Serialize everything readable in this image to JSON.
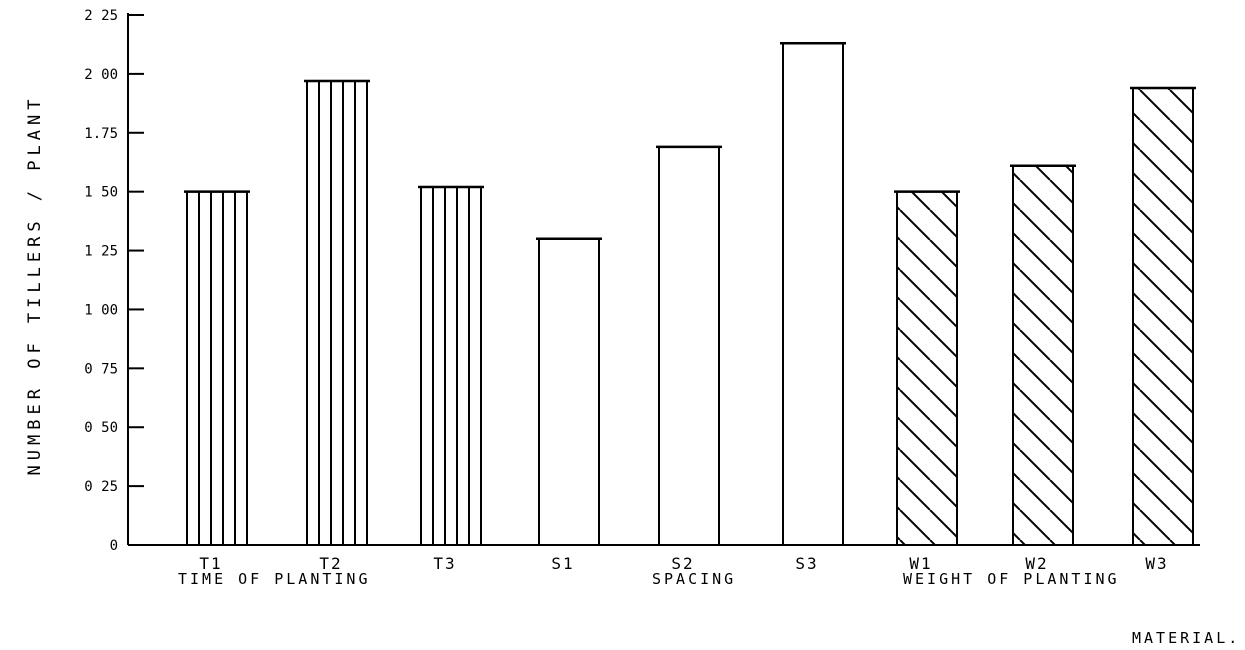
{
  "chart_data": {
    "type": "bar",
    "title": "",
    "ylabel": "NUMBER  OF  TILLERS / PLANT",
    "xlabel": "",
    "ylim": [
      0,
      2.25
    ],
    "yticks": [
      {
        "value": 0,
        "label": "0"
      },
      {
        "value": 0.25,
        "label": "0 25"
      },
      {
        "value": 0.5,
        "label": "0 50"
      },
      {
        "value": 0.75,
        "label": "0 75"
      },
      {
        "value": 1.0,
        "label": "1 00"
      },
      {
        "value": 1.25,
        "label": "1 25"
      },
      {
        "value": 1.5,
        "label": "1 50"
      },
      {
        "value": 1.75,
        "label": "1.75"
      },
      {
        "value": 2.0,
        "label": "2 00"
      },
      {
        "value": 2.25,
        "label": "2 25"
      }
    ],
    "categories": [
      "T1",
      "T2",
      "T3",
      "S1",
      "S2",
      "S3",
      "W1",
      "W2",
      "W3"
    ],
    "values": [
      1.5,
      1.97,
      1.52,
      1.3,
      1.69,
      2.13,
      1.5,
      1.61,
      1.94
    ],
    "fills": [
      "vertical",
      "vertical",
      "vertical",
      "none",
      "none",
      "none",
      "diagonal",
      "diagonal",
      "diagonal"
    ],
    "groups": [
      {
        "label": "TIME   OF   PLANTING"
      },
      {
        "label": "SPACING"
      },
      {
        "label": "WEIGHT  OF  PLANTING"
      },
      {
        "label": "MATERIAL."
      }
    ],
    "grid": false,
    "legend": "none"
  }
}
